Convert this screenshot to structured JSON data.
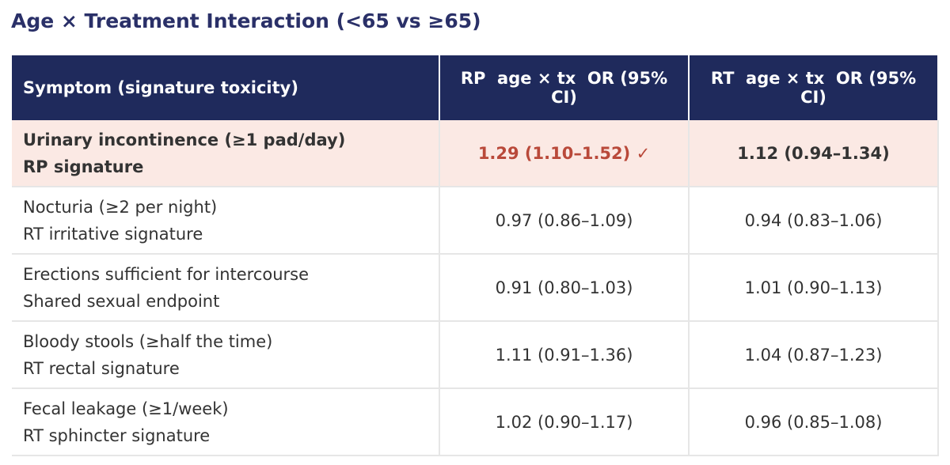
{
  "title": "Age × Treatment Interaction (<65 vs ≥65)",
  "table": {
    "header": [
      "Symptom (signature toxicity)",
      "RP  age × tx  OR (95% CI)",
      "RT  age × tx  OR (95% CI)"
    ],
    "rows": [
      {
        "symptom": "Urinary incontinence (≥1 pad/day)",
        "signature": "RP signature",
        "rp": "1.29 (1.10–1.52) ✓",
        "rt": "1.12 (0.94–1.34)"
      },
      {
        "symptom": "Nocturia (≥2 per night)",
        "signature": "RT irritative signature",
        "rp": "0.97 (0.86–1.09)",
        "rt": "0.94 (0.83–1.06)"
      },
      {
        "symptom": "Erections sufficient for intercourse",
        "signature": "Shared sexual endpoint",
        "rp": "0.91 (0.80–1.03)",
        "rt": "1.01 (0.90–1.13)"
      },
      {
        "symptom": "Bloody stools (≥half the time)",
        "signature": "RT rectal signature",
        "rp": "1.11 (0.91–1.36)",
        "rt": "1.04 (0.87–1.23)"
      },
      {
        "symptom": "Fecal leakage (≥1/week)",
        "signature": "RT sphincter signature",
        "rp": "1.02 (0.90–1.17)",
        "rt": "0.96 (0.85–1.08)"
      }
    ]
  }
}
